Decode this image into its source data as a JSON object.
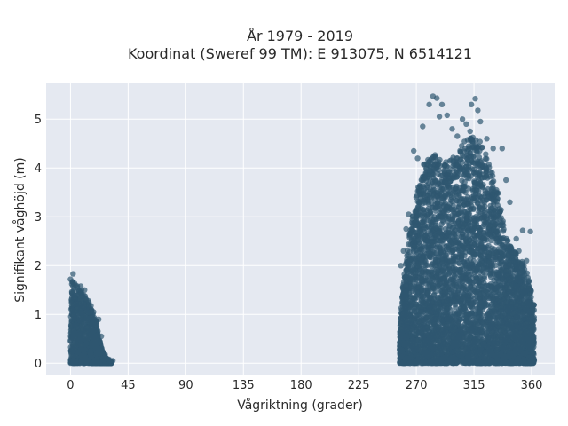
{
  "chart_data": {
    "type": "scatter",
    "title_line1": "År 1979 - 2019",
    "title_line2": "Koordinat (Sweref 99 TM): E 913075, N 6514121",
    "xlabel": "Vågriktning (grader)",
    "ylabel": "Signifikant våghöjd (m)",
    "xlim": [
      -19,
      378
    ],
    "ylim": [
      -0.25,
      5.75
    ],
    "xticks": [
      0,
      45,
      90,
      135,
      180,
      225,
      270,
      315,
      360
    ],
    "yticks": [
      0,
      1,
      2,
      3,
      4,
      5
    ],
    "grid": true,
    "background": "#e5e9f1",
    "grid_color": "#ffffff",
    "point_color": "#2f5771",
    "point_opacity": 0.7,
    "clusters": [
      {
        "direction_range": [
          0,
          32
        ],
        "height_envelope": [
          [
            0,
            1.55
          ],
          [
            2,
            1.75
          ],
          [
            5,
            1.6
          ],
          [
            9,
            1.5
          ],
          [
            13,
            1.35
          ],
          [
            17,
            1.05
          ],
          [
            20,
            0.9
          ],
          [
            22,
            0.55
          ],
          [
            25,
            0.25
          ],
          [
            28,
            0.1
          ],
          [
            32,
            0.03
          ]
        ]
      },
      {
        "direction_range": [
          257,
          362
        ],
        "height_envelope": [
          [
            257,
            0.6
          ],
          [
            259,
            1.5
          ],
          [
            262,
            2.1
          ],
          [
            265,
            2.8
          ],
          [
            268,
            3.2
          ],
          [
            272,
            3.7
          ],
          [
            276,
            4.1
          ],
          [
            280,
            4.2
          ],
          [
            285,
            4.3
          ],
          [
            290,
            4.1
          ],
          [
            295,
            4.15
          ],
          [
            300,
            4.25
          ],
          [
            305,
            4.5
          ],
          [
            310,
            4.6
          ],
          [
            315,
            4.65
          ],
          [
            320,
            4.55
          ],
          [
            325,
            4.3
          ],
          [
            330,
            3.9
          ],
          [
            333,
            3.6
          ],
          [
            336,
            3.2
          ],
          [
            340,
            2.6
          ],
          [
            345,
            2.35
          ],
          [
            350,
            2.2
          ],
          [
            355,
            2.0
          ],
          [
            358,
            1.7
          ],
          [
            362,
            1.2
          ]
        ]
      }
    ],
    "outliers": [
      {
        "x": 283,
        "y": 5.47
      },
      {
        "x": 286,
        "y": 5.43
      },
      {
        "x": 280,
        "y": 5.3
      },
      {
        "x": 290,
        "y": 5.3
      },
      {
        "x": 316,
        "y": 5.42
      },
      {
        "x": 313,
        "y": 5.3
      },
      {
        "x": 318,
        "y": 5.18
      },
      {
        "x": 288,
        "y": 5.05
      },
      {
        "x": 294,
        "y": 5.08
      },
      {
        "x": 306,
        "y": 5.0
      },
      {
        "x": 309,
        "y": 4.9
      },
      {
        "x": 320,
        "y": 4.95
      },
      {
        "x": 275,
        "y": 4.85
      },
      {
        "x": 298,
        "y": 4.8
      },
      {
        "x": 302,
        "y": 4.65
      },
      {
        "x": 312,
        "y": 4.75
      },
      {
        "x": 325,
        "y": 4.6
      },
      {
        "x": 330,
        "y": 4.4
      },
      {
        "x": 337,
        "y": 4.4
      },
      {
        "x": 340,
        "y": 3.75
      },
      {
        "x": 343,
        "y": 3.3
      },
      {
        "x": 353,
        "y": 2.72
      },
      {
        "x": 359,
        "y": 2.7
      },
      {
        "x": 348,
        "y": 2.55
      },
      {
        "x": 350,
        "y": 2.3
      },
      {
        "x": 356,
        "y": 2.1
      },
      {
        "x": 346,
        "y": 2.25
      },
      {
        "x": 268,
        "y": 4.35
      },
      {
        "x": 271,
        "y": 4.2
      },
      {
        "x": 264,
        "y": 3.05
      },
      {
        "x": 262,
        "y": 2.75
      },
      {
        "x": 260,
        "y": 2.3
      },
      {
        "x": 258,
        "y": 2.0
      },
      {
        "x": 2,
        "y": 1.83
      },
      {
        "x": 0,
        "y": 1.72
      },
      {
        "x": 1,
        "y": 1.62
      },
      {
        "x": 8,
        "y": 1.58
      },
      {
        "x": 11,
        "y": 1.5
      },
      {
        "x": 14,
        "y": 1.28
      },
      {
        "x": 16,
        "y": 1.18
      },
      {
        "x": 18,
        "y": 1.05
      },
      {
        "x": 22,
        "y": 0.9
      },
      {
        "x": 24,
        "y": 0.55
      },
      {
        "x": 27,
        "y": 0.18
      },
      {
        "x": 33,
        "y": 0.05
      },
      {
        "x": 30,
        "y": 0.08
      }
    ]
  }
}
